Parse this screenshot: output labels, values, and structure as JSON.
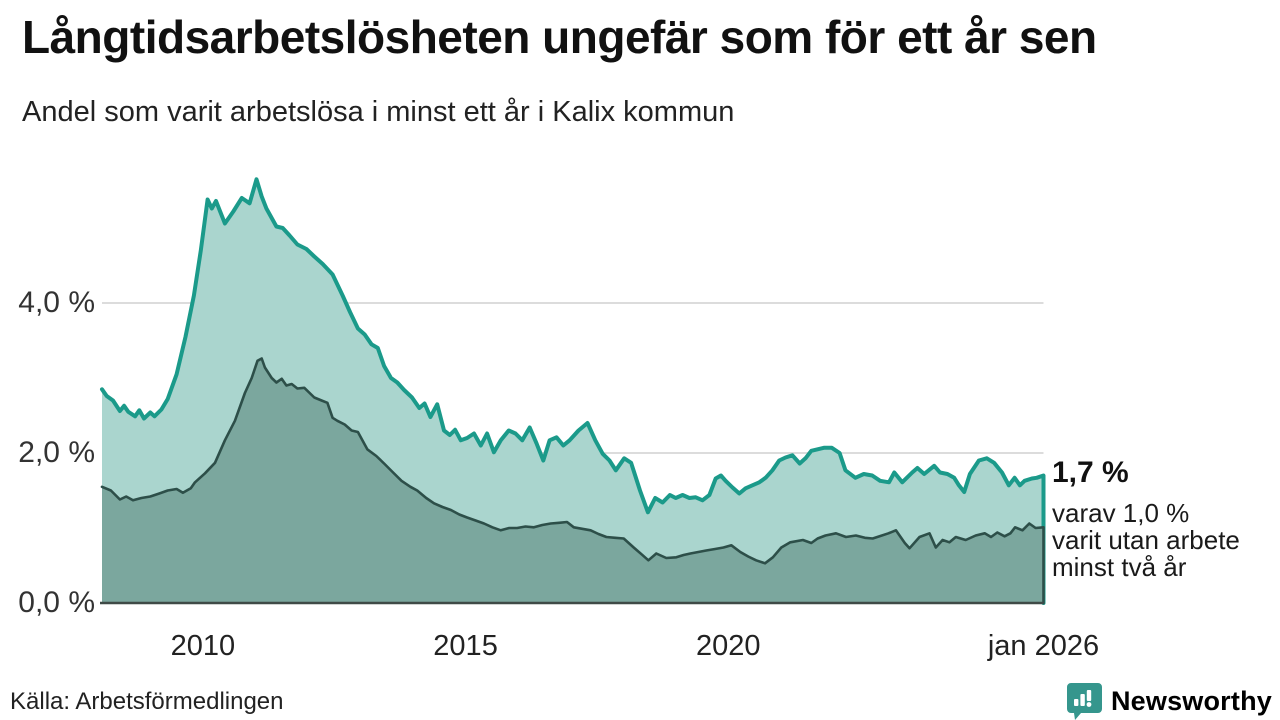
{
  "header": {
    "title": "Långtidsarbetslösheten ungefär som för ett år sen",
    "subtitle": "Andel som varit arbetslösa i minst ett år i Kalix kommun"
  },
  "chart_data": {
    "type": "area",
    "title": "Långtidsarbetslösheten ungefär som för ett år sen",
    "subtitle": "Andel som varit arbetslösa i minst ett år i Kalix kommun",
    "unit": "%",
    "x_range": [
      2008.08,
      2026.0
    ],
    "ylim": [
      0,
      5.8
    ],
    "grid": true,
    "y_ticks": [
      {
        "value": 0,
        "label": "0,0 %",
        "gridline": false
      },
      {
        "value": 2,
        "label": "2,0 %",
        "gridline": true
      },
      {
        "value": 4,
        "label": "4,0 %",
        "gridline": true
      }
    ],
    "x_ticks": [
      {
        "year": 2010,
        "label": "2010"
      },
      {
        "year": 2015,
        "label": "2015"
      },
      {
        "year": 2020,
        "label": "2020"
      },
      {
        "year": 2026,
        "label": "jan 2026"
      }
    ],
    "series": [
      {
        "name": "Arbetslösa minst ett år",
        "line_color": "#1b9a8a",
        "fill_color": "#aad5ce",
        "line_width": 4,
        "latest_value": "1,7 %",
        "points": [
          [
            2008.08,
            2.85
          ],
          [
            2008.17,
            2.76
          ],
          [
            2008.29,
            2.7
          ],
          [
            2008.42,
            2.56
          ],
          [
            2008.5,
            2.63
          ],
          [
            2008.58,
            2.55
          ],
          [
            2008.71,
            2.49
          ],
          [
            2008.79,
            2.57
          ],
          [
            2008.88,
            2.46
          ],
          [
            2009.0,
            2.54
          ],
          [
            2009.08,
            2.49
          ],
          [
            2009.21,
            2.58
          ],
          [
            2009.33,
            2.72
          ],
          [
            2009.5,
            3.05
          ],
          [
            2009.67,
            3.55
          ],
          [
            2009.83,
            4.1
          ],
          [
            2009.96,
            4.7
          ],
          [
            2010.09,
            5.38
          ],
          [
            2010.17,
            5.26
          ],
          [
            2010.25,
            5.36
          ],
          [
            2010.42,
            5.06
          ],
          [
            2010.58,
            5.22
          ],
          [
            2010.74,
            5.4
          ],
          [
            2010.89,
            5.33
          ],
          [
            2011.02,
            5.65
          ],
          [
            2011.12,
            5.42
          ],
          [
            2011.21,
            5.26
          ],
          [
            2011.4,
            5.02
          ],
          [
            2011.52,
            5.0
          ],
          [
            2011.65,
            4.9
          ],
          [
            2011.8,
            4.78
          ],
          [
            2011.97,
            4.72
          ],
          [
            2012.12,
            4.62
          ],
          [
            2012.28,
            4.52
          ],
          [
            2012.47,
            4.38
          ],
          [
            2012.66,
            4.1
          ],
          [
            2012.8,
            3.88
          ],
          [
            2012.95,
            3.66
          ],
          [
            2013.08,
            3.58
          ],
          [
            2013.21,
            3.45
          ],
          [
            2013.33,
            3.4
          ],
          [
            2013.45,
            3.16
          ],
          [
            2013.58,
            3.0
          ],
          [
            2013.7,
            2.94
          ],
          [
            2013.83,
            2.84
          ],
          [
            2013.98,
            2.74
          ],
          [
            2014.12,
            2.6
          ],
          [
            2014.22,
            2.66
          ],
          [
            2014.33,
            2.48
          ],
          [
            2014.46,
            2.65
          ],
          [
            2014.59,
            2.3
          ],
          [
            2014.7,
            2.24
          ],
          [
            2014.8,
            2.31
          ],
          [
            2014.91,
            2.17
          ],
          [
            2015.03,
            2.2
          ],
          [
            2015.16,
            2.26
          ],
          [
            2015.29,
            2.1
          ],
          [
            2015.41,
            2.26
          ],
          [
            2015.54,
            2.01
          ],
          [
            2015.67,
            2.17
          ],
          [
            2015.82,
            2.3
          ],
          [
            2015.95,
            2.26
          ],
          [
            2016.08,
            2.17
          ],
          [
            2016.22,
            2.34
          ],
          [
            2016.35,
            2.13
          ],
          [
            2016.48,
            1.9
          ],
          [
            2016.6,
            2.17
          ],
          [
            2016.73,
            2.21
          ],
          [
            2016.86,
            2.1
          ],
          [
            2016.98,
            2.17
          ],
          [
            2017.15,
            2.3
          ],
          [
            2017.32,
            2.4
          ],
          [
            2017.47,
            2.17
          ],
          [
            2017.61,
            1.99
          ],
          [
            2017.74,
            1.9
          ],
          [
            2017.86,
            1.77
          ],
          [
            2018.02,
            1.93
          ],
          [
            2018.15,
            1.87
          ],
          [
            2018.32,
            1.5
          ],
          [
            2018.47,
            1.21
          ],
          [
            2018.61,
            1.4
          ],
          [
            2018.75,
            1.34
          ],
          [
            2018.89,
            1.44
          ],
          [
            2019.0,
            1.4
          ],
          [
            2019.13,
            1.44
          ],
          [
            2019.26,
            1.4
          ],
          [
            2019.38,
            1.41
          ],
          [
            2019.51,
            1.37
          ],
          [
            2019.64,
            1.44
          ],
          [
            2019.76,
            1.66
          ],
          [
            2019.86,
            1.7
          ],
          [
            2019.95,
            1.63
          ],
          [
            2020.08,
            1.54
          ],
          [
            2020.21,
            1.46
          ],
          [
            2020.33,
            1.53
          ],
          [
            2020.46,
            1.57
          ],
          [
            2020.59,
            1.61
          ],
          [
            2020.71,
            1.67
          ],
          [
            2020.84,
            1.77
          ],
          [
            2020.97,
            1.9
          ],
          [
            2021.09,
            1.94
          ],
          [
            2021.22,
            1.97
          ],
          [
            2021.36,
            1.86
          ],
          [
            2021.47,
            1.93
          ],
          [
            2021.58,
            2.03
          ],
          [
            2021.7,
            2.05
          ],
          [
            2021.82,
            2.07
          ],
          [
            2021.97,
            2.07
          ],
          [
            2022.12,
            2.0
          ],
          [
            2022.23,
            1.77
          ],
          [
            2022.42,
            1.67
          ],
          [
            2022.58,
            1.72
          ],
          [
            2022.74,
            1.7
          ],
          [
            2022.89,
            1.63
          ],
          [
            2023.06,
            1.61
          ],
          [
            2023.16,
            1.74
          ],
          [
            2023.31,
            1.61
          ],
          [
            2023.5,
            1.74
          ],
          [
            2023.6,
            1.8
          ],
          [
            2023.73,
            1.72
          ],
          [
            2023.92,
            1.83
          ],
          [
            2024.03,
            1.74
          ],
          [
            2024.17,
            1.72
          ],
          [
            2024.3,
            1.67
          ],
          [
            2024.39,
            1.57
          ],
          [
            2024.49,
            1.48
          ],
          [
            2024.6,
            1.72
          ],
          [
            2024.77,
            1.9
          ],
          [
            2024.92,
            1.93
          ],
          [
            2025.06,
            1.87
          ],
          [
            2025.21,
            1.74
          ],
          [
            2025.34,
            1.57
          ],
          [
            2025.45,
            1.67
          ],
          [
            2025.55,
            1.57
          ],
          [
            2025.64,
            1.63
          ],
          [
            2025.78,
            1.66
          ],
          [
            2025.87,
            1.67
          ],
          [
            2026.0,
            1.7
          ]
        ]
      },
      {
        "name": "Arbetslösa minst två år",
        "line_color": "#2d4f49",
        "fill_color": "#7ba79e",
        "line_width": 2.6,
        "latest_value": "1,0 %",
        "points": [
          [
            2008.08,
            1.55
          ],
          [
            2008.25,
            1.5
          ],
          [
            2008.42,
            1.38
          ],
          [
            2008.54,
            1.42
          ],
          [
            2008.67,
            1.37
          ],
          [
            2008.83,
            1.4
          ],
          [
            2009.0,
            1.42
          ],
          [
            2009.17,
            1.46
          ],
          [
            2009.33,
            1.5
          ],
          [
            2009.5,
            1.52
          ],
          [
            2009.62,
            1.47
          ],
          [
            2009.77,
            1.53
          ],
          [
            2009.85,
            1.61
          ],
          [
            2010.04,
            1.73
          ],
          [
            2010.23,
            1.87
          ],
          [
            2010.42,
            2.17
          ],
          [
            2010.61,
            2.43
          ],
          [
            2010.8,
            2.8
          ],
          [
            2010.93,
            3.0
          ],
          [
            2011.04,
            3.23
          ],
          [
            2011.12,
            3.26
          ],
          [
            2011.18,
            3.14
          ],
          [
            2011.31,
            3.0
          ],
          [
            2011.4,
            2.94
          ],
          [
            2011.5,
            2.99
          ],
          [
            2011.59,
            2.9
          ],
          [
            2011.69,
            2.92
          ],
          [
            2011.8,
            2.86
          ],
          [
            2011.93,
            2.87
          ],
          [
            2012.12,
            2.74
          ],
          [
            2012.26,
            2.7
          ],
          [
            2012.37,
            2.67
          ],
          [
            2012.47,
            2.47
          ],
          [
            2012.56,
            2.43
          ],
          [
            2012.7,
            2.38
          ],
          [
            2012.83,
            2.3
          ],
          [
            2012.95,
            2.28
          ],
          [
            2013.13,
            2.05
          ],
          [
            2013.3,
            1.96
          ],
          [
            2013.45,
            1.86
          ],
          [
            2013.62,
            1.74
          ],
          [
            2013.78,
            1.63
          ],
          [
            2013.95,
            1.55
          ],
          [
            2014.08,
            1.5
          ],
          [
            2014.25,
            1.4
          ],
          [
            2014.4,
            1.33
          ],
          [
            2014.56,
            1.28
          ],
          [
            2014.72,
            1.24
          ],
          [
            2014.88,
            1.18
          ],
          [
            2015.03,
            1.14
          ],
          [
            2015.19,
            1.1
          ],
          [
            2015.35,
            1.06
          ],
          [
            2015.51,
            1.01
          ],
          [
            2015.67,
            0.97
          ],
          [
            2015.83,
            1.0
          ],
          [
            2015.98,
            1.0
          ],
          [
            2016.14,
            1.02
          ],
          [
            2016.3,
            1.01
          ],
          [
            2016.46,
            1.04
          ],
          [
            2016.62,
            1.06
          ],
          [
            2016.78,
            1.07
          ],
          [
            2016.93,
            1.08
          ],
          [
            2017.06,
            1.01
          ],
          [
            2017.22,
            0.99
          ],
          [
            2017.38,
            0.97
          ],
          [
            2017.53,
            0.92
          ],
          [
            2017.68,
            0.88
          ],
          [
            2017.85,
            0.87
          ],
          [
            2018.01,
            0.86
          ],
          [
            2018.2,
            0.74
          ],
          [
            2018.35,
            0.65
          ],
          [
            2018.48,
            0.57
          ],
          [
            2018.63,
            0.66
          ],
          [
            2018.82,
            0.6
          ],
          [
            2019.01,
            0.61
          ],
          [
            2019.15,
            0.64
          ],
          [
            2019.28,
            0.66
          ],
          [
            2019.43,
            0.68
          ],
          [
            2019.58,
            0.7
          ],
          [
            2019.75,
            0.72
          ],
          [
            2019.91,
            0.74
          ],
          [
            2020.06,
            0.77
          ],
          [
            2020.23,
            0.68
          ],
          [
            2020.38,
            0.62
          ],
          [
            2020.53,
            0.57
          ],
          [
            2020.7,
            0.53
          ],
          [
            2020.85,
            0.61
          ],
          [
            2021.01,
            0.74
          ],
          [
            2021.18,
            0.81
          ],
          [
            2021.42,
            0.84
          ],
          [
            2021.58,
            0.8
          ],
          [
            2021.7,
            0.86
          ],
          [
            2021.85,
            0.9
          ],
          [
            2022.05,
            0.93
          ],
          [
            2022.24,
            0.88
          ],
          [
            2022.43,
            0.9
          ],
          [
            2022.6,
            0.87
          ],
          [
            2022.75,
            0.86
          ],
          [
            2022.88,
            0.89
          ],
          [
            2023.05,
            0.93
          ],
          [
            2023.19,
            0.97
          ],
          [
            2023.36,
            0.8
          ],
          [
            2023.45,
            0.73
          ],
          [
            2023.64,
            0.88
          ],
          [
            2023.83,
            0.93
          ],
          [
            2023.95,
            0.74
          ],
          [
            2024.08,
            0.84
          ],
          [
            2024.21,
            0.81
          ],
          [
            2024.33,
            0.88
          ],
          [
            2024.52,
            0.84
          ],
          [
            2024.71,
            0.9
          ],
          [
            2024.88,
            0.93
          ],
          [
            2025.0,
            0.88
          ],
          [
            2025.12,
            0.94
          ],
          [
            2025.26,
            0.89
          ],
          [
            2025.37,
            0.93
          ],
          [
            2025.46,
            1.01
          ],
          [
            2025.6,
            0.97
          ],
          [
            2025.73,
            1.06
          ],
          [
            2025.85,
            1.0
          ],
          [
            2026.0,
            1.01
          ]
        ]
      }
    ],
    "annotation": {
      "headline": "1,7 %",
      "lines": [
        "varav 1,0 %",
        "varit utan arbete",
        "minst två år"
      ]
    },
    "colors": {
      "grid": "#dcdcdc",
      "axis": "#3f4a47"
    },
    "legend_position": "none"
  },
  "footer": {
    "source": "Källa: Arbetsförmedlingen",
    "brand": "Newsworthy",
    "brand_color": "#2f948b"
  }
}
